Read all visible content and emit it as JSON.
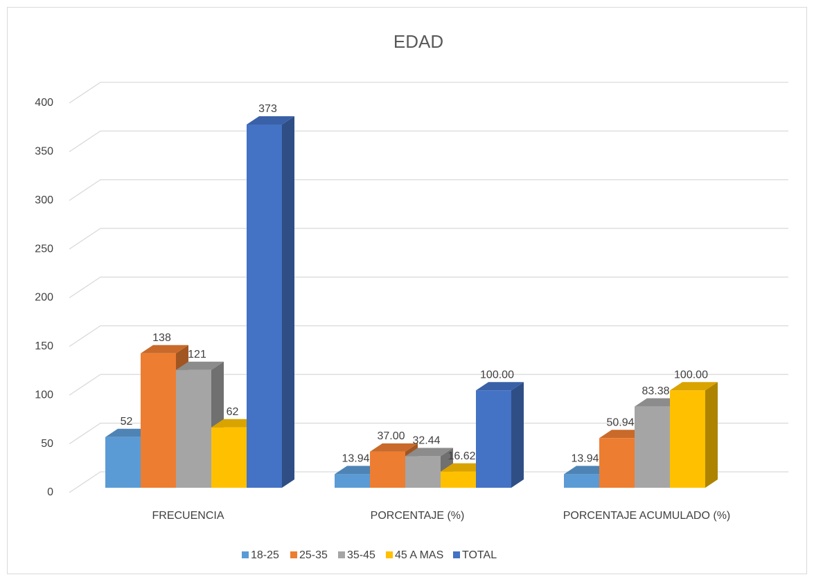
{
  "chart_data": {
    "type": "bar3d",
    "title": "EDAD",
    "categories": [
      "FRECUENCIA",
      "PORCENTAJE (%)",
      "PORCENTAJE ACUMULADO (%)"
    ],
    "series": [
      {
        "name": "18-25",
        "color": "#5b9bd5",
        "values": [
          52,
          13.94,
          13.94
        ],
        "value_labels": [
          "52",
          "13.94",
          "13.94"
        ]
      },
      {
        "name": "25-35",
        "color": "#ed7d31",
        "values": [
          138,
          37.0,
          50.94
        ],
        "value_labels": [
          "138",
          "37.00",
          "50.94"
        ]
      },
      {
        "name": "35-45",
        "color": "#a5a5a5",
        "values": [
          121,
          32.44,
          83.38
        ],
        "value_labels": [
          "121",
          "32.44",
          "83.38"
        ]
      },
      {
        "name": "45 A MAS",
        "color": "#ffc000",
        "values": [
          62,
          16.62,
          100.0
        ],
        "value_labels": [
          "62",
          "16.62",
          "100.00"
        ]
      },
      {
        "name": "TOTAL",
        "color": "#4472c4",
        "values": [
          373,
          100.0,
          null
        ],
        "value_labels": [
          "373",
          "100.00",
          null
        ]
      }
    ],
    "ylim": [
      0,
      400
    ],
    "yticks": [
      0,
      50,
      100,
      150,
      200,
      250,
      300,
      350,
      400
    ],
    "grid": true,
    "legend": "bottom"
  }
}
